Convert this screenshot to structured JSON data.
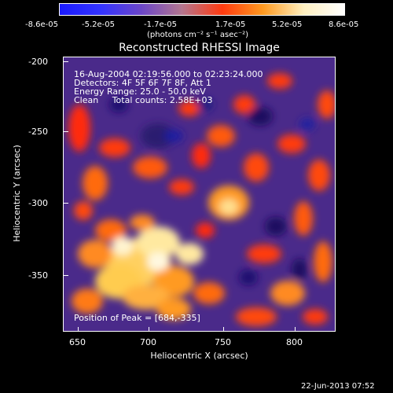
{
  "colorbar": {
    "tick_labels": [
      "-8.6e-05",
      "-5.2e-05",
      "-1.7e-05",
      "1.7e-05",
      "5.2e-05",
      "8.6e-05"
    ],
    "units": "(photons cm⁻² s⁻¹ asec⁻²)",
    "colors": [
      "#1a1aff",
      "#3333ff",
      "#6b46c8",
      "#b37690",
      "#ff3a10",
      "#ff9a20",
      "#fff0c0",
      "#ffffff"
    ]
  },
  "plot": {
    "title": "Reconstructed RHESSI Image",
    "annotations": {
      "line1": "16-Aug-2004 02:19:56.000 to 02:23:24.000",
      "line2": "Detectors: 4F 5F 6F 7F 8F, Att 1",
      "line3": "Energy Range: 25.0 - 50.0 keV",
      "line4": "Clean     Total counts: 2.58E+03",
      "peak": "Position of Peak = [684,-335]"
    },
    "xlabel": "Heliocentric X (arcsec)",
    "ylabel": "Heliocentric Y (arcsec)",
    "x_ticks": [
      "650",
      "700",
      "750",
      "800"
    ],
    "y_ticks": [
      "-200",
      "-250",
      "-300",
      "-350"
    ],
    "xlim": [
      635,
      828
    ],
    "ylim": [
      -392,
      -196
    ]
  },
  "footer": {
    "date": "22-Jun-2013 07:52"
  }
}
